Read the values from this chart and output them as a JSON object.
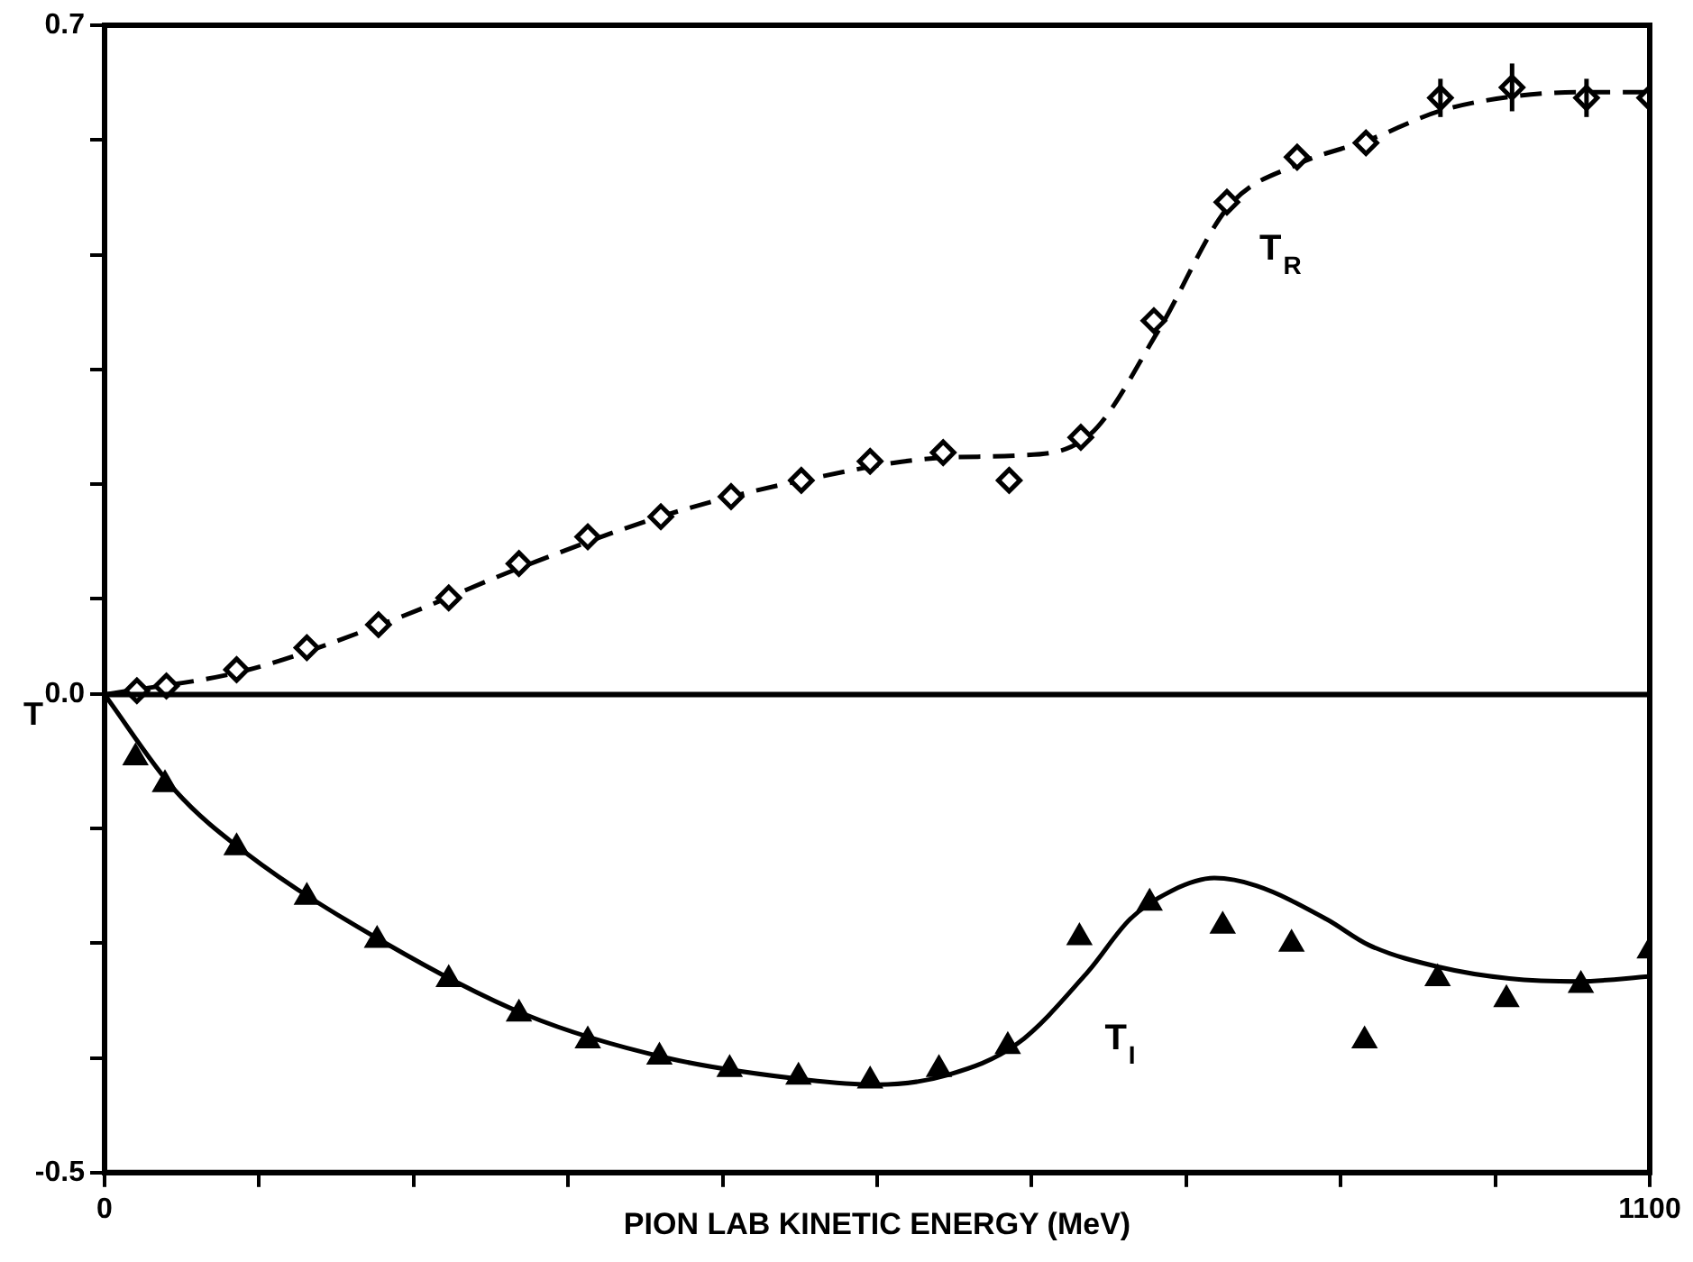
{
  "chart_data": {
    "type": "scatter",
    "xlabel": "PION LAB KINETIC ENERGY (MeV)",
    "ylabel": "T",
    "xlim": [
      0,
      1100
    ],
    "ylim": [
      -0.5,
      0.7
    ],
    "xticks": [
      0,
      {
        "value": 110,
        "label": null
      },
      {
        "value": 220,
        "label": null
      },
      {
        "value": 330,
        "label": null
      },
      {
        "value": 440,
        "label": null
      },
      {
        "value": 550,
        "label": null
      },
      {
        "value": 660,
        "label": null
      },
      {
        "value": 770,
        "label": null
      },
      {
        "value": 880,
        "label": null
      },
      {
        "value": 990,
        "label": null
      },
      1100
    ],
    "yticks": [
      {
        "value": -0.5,
        "label": "-0.5"
      },
      {
        "value": -0.38,
        "label": null
      },
      {
        "value": -0.26,
        "label": null
      },
      {
        "value": -0.14,
        "label": null
      },
      {
        "value": 0,
        "label": "0.0"
      },
      {
        "value": 0.1,
        "label": null
      },
      {
        "value": 0.22,
        "label": null
      },
      {
        "value": 0.34,
        "label": null
      },
      {
        "value": 0.46,
        "label": null
      },
      {
        "value": 0.58,
        "label": null
      },
      0.7
    ],
    "grid": false,
    "legend": false,
    "ref_lines": [
      {
        "axis": "y",
        "value": 0,
        "color": "#000000"
      }
    ],
    "series": [
      {
        "type": "scatter",
        "name": "T$_{R}$",
        "color": "#000000",
        "marker": "diamond",
        "x": [
          23,
          44,
          94,
          144,
          195,
          245,
          295,
          344,
          396,
          446,
          496,
          545,
          597,
          644,
          695,
          747,
          799,
          849,
          898,
          951,
          1002,
          1055,
          1100
        ],
        "values": [
          0.004,
          0.009,
          0.026,
          0.049,
          0.073,
          0.101,
          0.137,
          0.165,
          0.186,
          0.207,
          0.224,
          0.244,
          0.253,
          0.224,
          0.269,
          0.391,
          0.515,
          0.562,
          0.577,
          0.624,
          0.635,
          0.624,
          0.624
        ],
        "errors": [
          null,
          null,
          null,
          null,
          null,
          null,
          null,
          null,
          null,
          null,
          null,
          null,
          null,
          null,
          null,
          null,
          null,
          null,
          null,
          0.02,
          0.025,
          0.02,
          null
        ]
      },
      {
        "type": "line",
        "color": "#000000",
        "marker": "none",
        "line_style": "dashed",
        "x": [
          0,
          100,
          200,
          300,
          400,
          500,
          600,
          650,
          700,
          750,
          800,
          850,
          900,
          950,
          1000,
          1050,
          1100
        ],
        "values": [
          0,
          0.025,
          0.075,
          0.135,
          0.188,
          0.225,
          0.248,
          0.25,
          0.27,
          0.38,
          0.51,
          0.555,
          0.58,
          0.61,
          0.625,
          0.63,
          0.63
        ]
      },
      {
        "type": "scatter",
        "name": "T$_{I}$",
        "color": "#000000",
        "marker": "triangle",
        "x": [
          22,
          43,
          94,
          144,
          194,
          245,
          295,
          344,
          395,
          445,
          494,
          545,
          594,
          643,
          694,
          744,
          796,
          845,
          897,
          949,
          998,
          1051,
          1100
        ],
        "values": [
          -0.066,
          -0.094,
          -0.16,
          -0.212,
          -0.257,
          -0.298,
          -0.334,
          -0.362,
          -0.379,
          -0.392,
          -0.4,
          -0.404,
          -0.392,
          -0.368,
          -0.254,
          -0.218,
          -0.242,
          -0.261,
          -0.362,
          -0.297,
          -0.319,
          -0.304,
          -0.268
        ]
      },
      {
        "type": "line",
        "color": "#000000",
        "marker": "none",
        "line_style": "solid",
        "x": [
          0,
          50,
          100,
          200,
          300,
          400,
          500,
          550,
          600,
          650,
          700,
          730,
          760,
          790,
          820,
          870,
          900,
          950,
          1000,
          1050,
          1100
        ],
        "values": [
          0,
          -0.1,
          -0.165,
          -0.26,
          -0.335,
          -0.38,
          -0.403,
          -0.408,
          -0.398,
          -0.365,
          -0.29,
          -0.235,
          -0.205,
          -0.192,
          -0.2,
          -0.235,
          -0.262,
          -0.285,
          -0.297,
          -0.3,
          -0.295
        ]
      }
    ]
  }
}
